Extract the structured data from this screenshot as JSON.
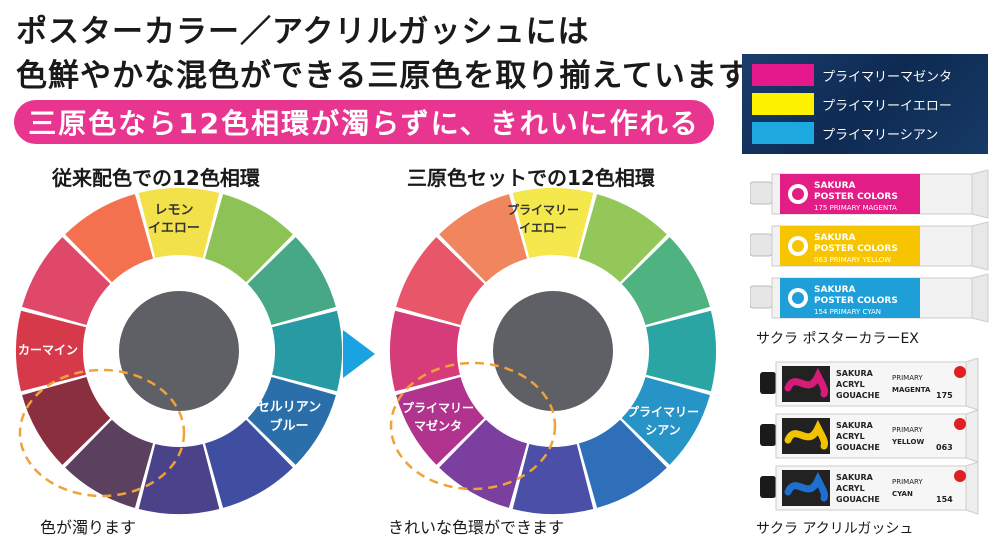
{
  "headline": {
    "line1": "ポスターカラー／アクリルガッシュには",
    "line2": "色鮮やかな混色ができる三原色を取り揃えています"
  },
  "banner": "三原色なら12色相環が濁らずに、きれいに作れる",
  "left_wheel": {
    "title": "従来配色での12色相環",
    "caption": "色が濁ります",
    "labels": {
      "lemon_line1": "レモン",
      "lemon_line2": "イエロー",
      "carmine": "カーマイン",
      "cerulean_line1": "セルリアン",
      "cerulean_line2": "ブルー"
    },
    "segment_colors": [
      "#f3e14c",
      "#8dc356",
      "#46a887",
      "#289aa3",
      "#2b6faa",
      "#3f4ea0",
      "#4a438a",
      "#5b4060",
      "#8a2f40",
      "#d63a4a",
      "#e0486a",
      "#f47150"
    ]
  },
  "right_wheel": {
    "title": "三原色セットでの12色相環",
    "caption": "きれいな色環ができます",
    "labels": {
      "yellow_line1": "プライマリー",
      "yellow_line2": "イエロー",
      "magenta_line1": "プライマリー",
      "magenta_line2": "マゼンタ",
      "cyan_line1": "プライマリー",
      "cyan_line2": "シアン"
    },
    "segment_colors": [
      "#f4e84c",
      "#93c75a",
      "#4fb381",
      "#2aa5a3",
      "#2694c7",
      "#2f6fb9",
      "#4b4fa8",
      "#7a3f9f",
      "#b0338e",
      "#d63c7a",
      "#e8566a",
      "#f0855e"
    ]
  },
  "legend": [
    {
      "label": "プライマリーマゼンタ",
      "color": "#e6198c"
    },
    {
      "label": "プライマリーイエロー",
      "color": "#fff200"
    },
    {
      "label": "プライマリーシアン",
      "color": "#1ea8e0"
    }
  ],
  "poster_tubes": [
    {
      "brand1": "SAKURA",
      "brand2": "POSTER COLORS",
      "code": "175 PRIMARY MAGENTA",
      "color": "#e21d86"
    },
    {
      "brand1": "SAKURA",
      "brand2": "POSTER COLORS",
      "code": "063 PRIMARY YELLOW",
      "color": "#f6c400"
    },
    {
      "brand1": "SAKURA",
      "brand2": "POSTER COLORS",
      "code": "154 PRIMARY CYAN",
      "color": "#1f9fd8"
    }
  ],
  "acryl_tubes": [
    {
      "brand1": "SAKURA",
      "brand2": "ACRYL",
      "brand3": "GOUACHE",
      "primary": "PRIMARY",
      "name": "MAGENTA",
      "num": "175",
      "color": "#d81a78"
    },
    {
      "brand1": "SAKURA",
      "brand2": "ACRYL",
      "brand3": "GOUACHE",
      "primary": "PRIMARY",
      "name": "YELLOW",
      "num": "063",
      "color": "#f2c400"
    },
    {
      "brand1": "SAKURA",
      "brand2": "ACRYL",
      "brand3": "GOUACHE",
      "primary": "PRIMARY",
      "name": "CYAN",
      "num": "154",
      "color": "#1f6fd0"
    }
  ],
  "products": {
    "poster": "サクラ ポスターカラーEX",
    "acryl": "サクラ アクリルガッシュ"
  },
  "colors": {
    "banner": "#e8358f",
    "arrow": "#1aa3e0",
    "center": "#5f5f66",
    "highlight_ring": "#f0a23a"
  }
}
